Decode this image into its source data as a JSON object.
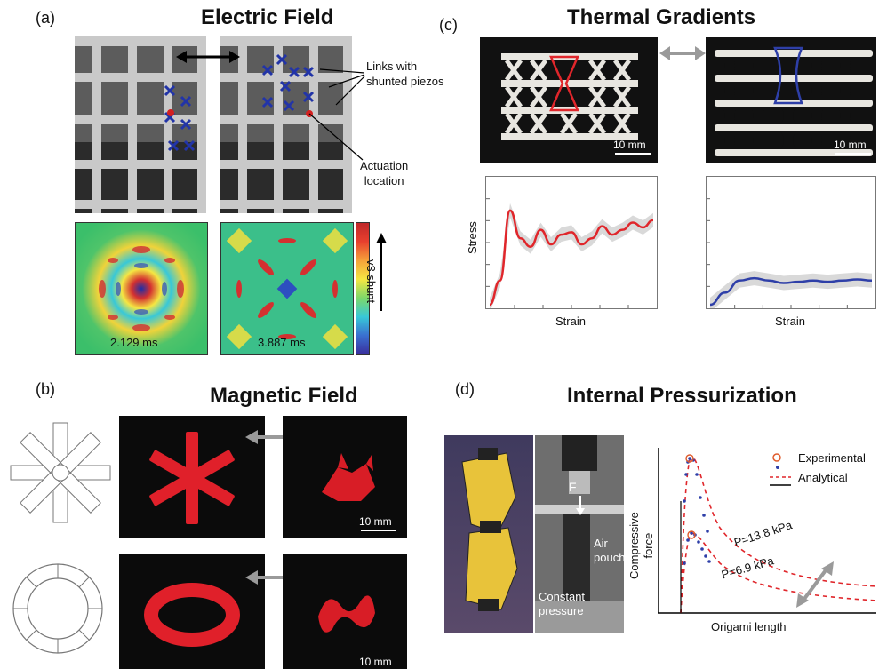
{
  "panels": {
    "a": {
      "label": "(a)",
      "title": "Electric Field",
      "annotation_links": "Links with\nshunted piezos",
      "annotation_actuation": "Actuation\nlocation",
      "time_left": "2.129 ms",
      "time_right": "3.887 ms",
      "colorbar_label": "v3 shunt"
    },
    "b": {
      "label": "(b)",
      "title": "Magnetic Field",
      "scale_top": "10 mm",
      "scale_bottom": "10 mm"
    },
    "c": {
      "label": "(c)",
      "title": "Thermal Gradients",
      "scale_left": "10 mm",
      "scale_right": "10 mm",
      "ylabel": "Stress",
      "xlabel_left": "Strain",
      "xlabel_right": "Strain"
    },
    "d": {
      "label": "(d)",
      "title": "Internal Pressurization",
      "photo_F": "F",
      "photo_air": "Air\npouch",
      "photo_const": "Constant\npressure",
      "ylabel": "Compressive\nforce",
      "xlabel": "Origami length",
      "legend_exp": "Experimental",
      "legend_ana": "Analytical",
      "curve_high": "P=13.8 kPa",
      "curve_low": "P=6.9 kPa"
    }
  },
  "colors": {
    "red_curve": "#e0262b",
    "blue_curve": "#2e3fa8",
    "grey_band": "#d0d0d0",
    "arrow_grey": "#9a9a9a",
    "magnet_red": "#e0202a"
  },
  "chart_data": [
    {
      "type": "line",
      "xlabel": "Strain",
      "ylabel": "Stress",
      "series": [
        {
          "values": [
            0,
            0.2,
            0.78,
            0.55,
            0.48,
            0.62,
            0.5,
            0.58,
            0.6,
            0.5,
            0.55,
            0.65,
            0.58,
            0.62,
            0.68,
            0.64,
            0.7
          ]
        }
      ]
    },
    {
      "type": "line",
      "xlabel": "Strain",
      "series": [
        {
          "values": [
            0,
            0.1,
            0.2,
            0.22,
            0.2,
            0.18,
            0.19,
            0.2,
            0.19,
            0.2,
            0.21,
            0.2
          ]
        }
      ]
    },
    {
      "type": "line",
      "xlabel": "Origami length",
      "ylabel": "Compressive\nforce",
      "series": [
        {
          "name": "Experimental"
        },
        {
          "name": "Analytical"
        }
      ]
    }
  ]
}
